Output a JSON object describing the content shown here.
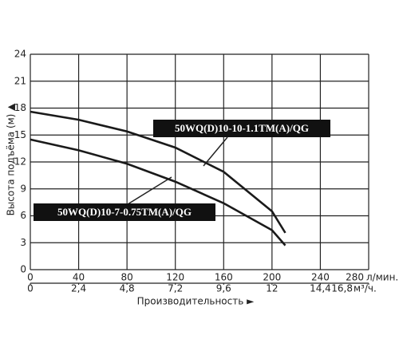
{
  "chart_data": {
    "type": "line",
    "y_label": "Высота подъёма (м) ▲",
    "x_label": "Производительность ►",
    "x_unit": "л/мин.",
    "x2_unit": "м³/ч.",
    "x": [
      0,
      40,
      80,
      120,
      160,
      200,
      211
    ],
    "series": [
      {
        "name": "50WQ(D)10-10-1.1TM(A)/QG",
        "color": "#1a1a1a",
        "values": [
          17.6,
          16.7,
          15.4,
          13.6,
          10.9,
          6.5,
          4.1
        ]
      },
      {
        "name": "50WQ(D)10-7-0.75TM(A)/QG",
        "color": "#1a1a1a",
        "values": [
          14.5,
          13.3,
          11.8,
          9.8,
          7.4,
          4.4,
          2.7
        ]
      }
    ],
    "xlim": [
      0,
      280
    ],
    "xticks": [
      0,
      40,
      80,
      120,
      160,
      200,
      240,
      280
    ],
    "x2lim": [
      0,
      16.8
    ],
    "x2ticks": [
      0,
      {
        "value": 2.4,
        "label": "2,4"
      },
      {
        "value": 4.8,
        "label": "4,8"
      },
      {
        "value": 7.2,
        "label": "7,2"
      },
      {
        "value": 9.6,
        "label": "9,6"
      },
      12,
      {
        "value": 14.4,
        "label": "14,4"
      },
      {
        "value": 16.8,
        "label": "16,8"
      }
    ],
    "ylim": [
      0,
      24
    ],
    "yticks": [
      0,
      3,
      6,
      9,
      12,
      15,
      18,
      21,
      24
    ],
    "grid": true
  }
}
